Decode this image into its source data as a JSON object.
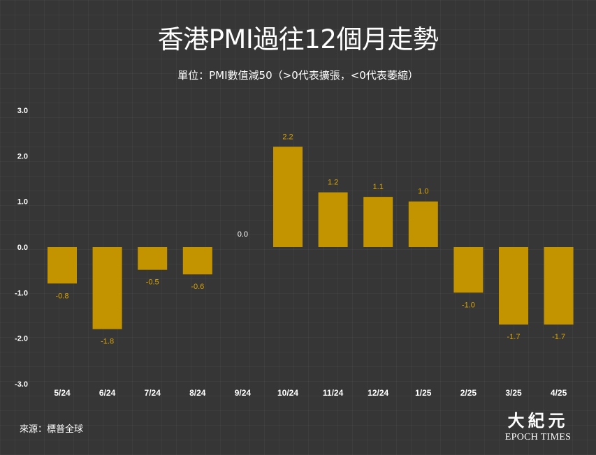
{
  "title": "香港PMI過往12個月走勢",
  "subtitle": "單位：PMI數值減50（>0代表擴張，<0代表萎縮）",
  "source": "來源：標普全球",
  "logo": {
    "chinese": "大紀元",
    "english": "EPOCH TIMES"
  },
  "colors": {
    "background": "#363636",
    "bar": "#C49400",
    "value_label": "#D9A300",
    "text": "#FFFFFF"
  },
  "chart_data": {
    "type": "bar",
    "categories": [
      "5/24",
      "6/24",
      "7/24",
      "8/24",
      "9/24",
      "10/24",
      "11/24",
      "12/24",
      "1/25",
      "2/25",
      "3/25",
      "4/25"
    ],
    "values": [
      -0.8,
      -1.8,
      -0.5,
      -0.6,
      0.0,
      2.2,
      1.2,
      1.1,
      1.0,
      -1.0,
      -1.7,
      -1.7
    ],
    "value_labels": [
      "-0.8",
      "-1.8",
      "-0.5",
      "-0.6",
      "0.0",
      "2.2",
      "1.2",
      "1.1",
      "1.0",
      "-1.0",
      "-1.7",
      "-1.7"
    ],
    "yticks": [
      "3.0",
      "2.0",
      "1.0",
      "0.0",
      "-1.0",
      "-2.0",
      "-3.0"
    ],
    "ylim": [
      -3,
      3
    ],
    "grid": false,
    "legend": "none"
  }
}
